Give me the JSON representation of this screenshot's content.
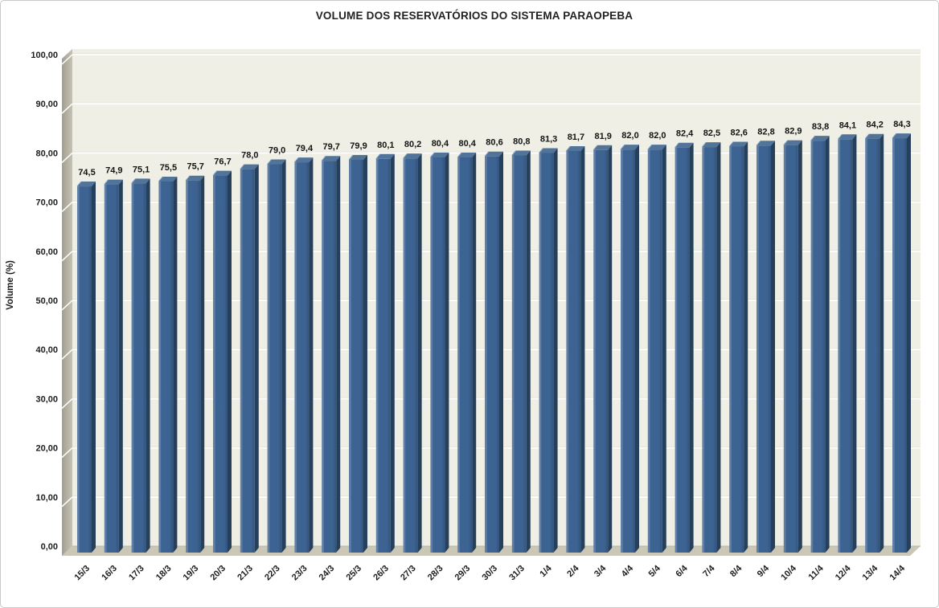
{
  "window": {
    "background": "#ffffff",
    "border_color": "#c9c9c9"
  },
  "chart_data": {
    "type": "bar",
    "title": "VOLUME DOS RESERVATÓRIOS DO SISTEMA PARAOPEBA",
    "xlabel": "",
    "ylabel": "Volume (%)",
    "ylim": [
      0,
      100
    ],
    "ytick_step": 10,
    "ytick_labels": [
      "0,00",
      "10,00",
      "20,00",
      "30,00",
      "40,00",
      "50,00",
      "60,00",
      "70,00",
      "80,00",
      "90,00",
      "100,00"
    ],
    "grid": true,
    "legend": "none",
    "style": "3d-effect-bars",
    "categories": [
      "15/3",
      "16/3",
      "17/3",
      "18/3",
      "19/3",
      "20/3",
      "21/3",
      "22/3",
      "23/3",
      "24/3",
      "25/3",
      "26/3",
      "27/3",
      "28/3",
      "29/3",
      "30/3",
      "31/3",
      "1/4",
      "2/4",
      "3/4",
      "4/4",
      "5/4",
      "6/4",
      "7/4",
      "8/4",
      "9/4",
      "10/4",
      "11/4",
      "12/4",
      "13/4",
      "14/4"
    ],
    "values": [
      74.5,
      74.9,
      75.1,
      75.5,
      75.7,
      76.7,
      78.0,
      79.0,
      79.4,
      79.7,
      79.9,
      80.1,
      80.2,
      80.4,
      80.4,
      80.6,
      80.8,
      81.3,
      81.7,
      81.9,
      82.0,
      82.0,
      82.4,
      82.5,
      82.6,
      82.8,
      82.9,
      83.8,
      84.1,
      84.2,
      84.3
    ],
    "value_labels": [
      "74,5",
      "74,9",
      "75,1",
      "75,5",
      "75,7",
      "76,7",
      "78,0",
      "79,0",
      "79,4",
      "79,7",
      "79,9",
      "80,1",
      "80,2",
      "80,4",
      "80,4",
      "80,6",
      "80,8",
      "81,3",
      "81,7",
      "81,9",
      "82,0",
      "82,0",
      "82,4",
      "82,5",
      "82,6",
      "82,8",
      "82,9",
      "83,8",
      "84,1",
      "84,2",
      "84,3"
    ],
    "colors": {
      "bar_front": "#3d6392",
      "bar_front_highlight": "#5f7fa6",
      "bar_front_shade": "#31547e",
      "bar_side": "#26405c",
      "bar_top": "#527499",
      "bar_top_edge": "#7e9cc0",
      "plot_bg": "#f0efe5",
      "wall_dark": "#a29e91",
      "wall_light": "#c6c2b3",
      "floor": "#cbc7b7",
      "floor_edge": "#b9b5a6",
      "gridline": "#ffffff",
      "gridline_shadow": "#dcd9cc",
      "label_text": "#1c1c1c",
      "title_text": "#222222"
    }
  }
}
